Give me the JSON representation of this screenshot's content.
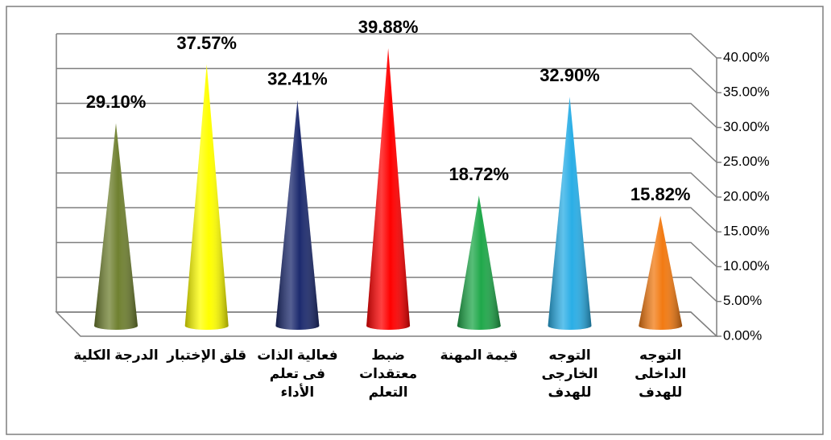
{
  "chart_data": {
    "type": "cone",
    "categories": [
      "الدرجة الكلية",
      "قلق الإختبار",
      "فعالية الذات\nفى تعلم\nالأداء",
      "ضبط\nمعتقدات\nالتعلم",
      "قيمة المهنة",
      "التوجه\nالخارجى\nللهدف",
      "التوجه\nالداخلى\nللهدف"
    ],
    "values": [
      29.1,
      37.57,
      32.41,
      39.88,
      18.72,
      32.9,
      15.82
    ],
    "value_labels": [
      "29.10%",
      "37.57%",
      "32.41%",
      "39.88%",
      "18.72%",
      "32.90%",
      "15.82%"
    ],
    "colors": [
      "#6f8030",
      "#ffff00",
      "#1c2a6e",
      "#ff0000",
      "#1fa84a",
      "#2aaee6",
      "#f27a12"
    ],
    "ylim": [
      0,
      40
    ],
    "yticks": [
      {
        "value": 0,
        "label": "0.00%"
      },
      {
        "value": 5,
        "label": "5.00%"
      },
      {
        "value": 10,
        "label": "10.00%"
      },
      {
        "value": 15,
        "label": "15.00%"
      },
      {
        "value": 20,
        "label": "20.00%"
      },
      {
        "value": 25,
        "label": "25.00%"
      },
      {
        "value": 30,
        "label": "30.00%"
      },
      {
        "value": 35,
        "label": "35.00%"
      },
      {
        "value": 40,
        "label": "40.00%"
      }
    ],
    "grid": true
  }
}
